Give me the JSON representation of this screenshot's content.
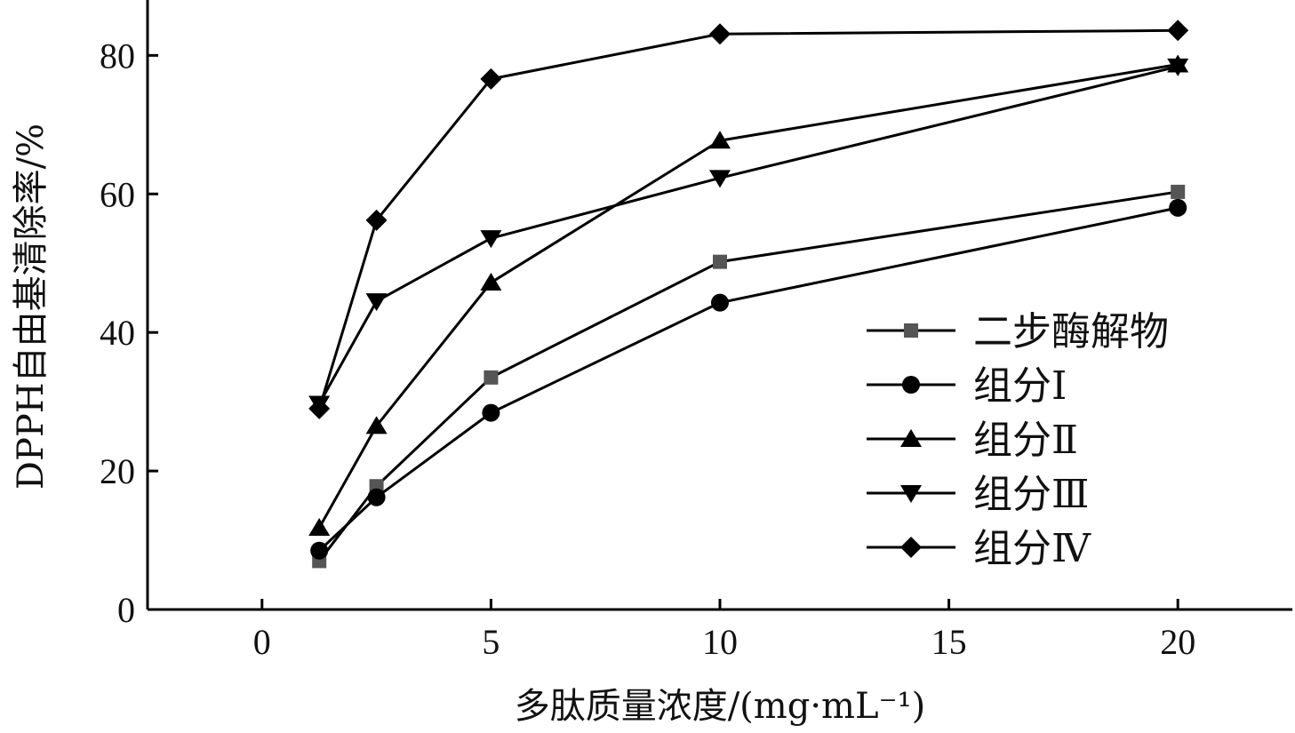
{
  "chart_data": {
    "type": "line",
    "xlabel": "多肽质量浓度/(mg·mL⁻¹)",
    "ylabel": "DPPH自由基清除率/%",
    "xlim": [
      -2.5,
      22.5
    ],
    "ylim": [
      0,
      88
    ],
    "xticks": [
      0,
      5,
      10,
      15,
      20
    ],
    "yticks": [
      0,
      20,
      40,
      60,
      80
    ],
    "x": [
      1.25,
      2.5,
      5,
      10,
      20
    ],
    "legend_position": "right",
    "series": [
      {
        "name": "二步酶解物",
        "marker": "square",
        "color": "#555555",
        "values": [
          7.0,
          17.8,
          33.5,
          50.2,
          60.3
        ]
      },
      {
        "name": "组分Ⅰ",
        "marker": "circle",
        "color": "#000000",
        "values": [
          8.5,
          16.2,
          28.4,
          44.3,
          58.0
        ]
      },
      {
        "name": "组分Ⅱ",
        "marker": "triangle-up",
        "color": "#000000",
        "values": [
          11.8,
          26.5,
          47.2,
          67.7,
          78.7
        ]
      },
      {
        "name": "组分Ⅲ",
        "marker": "triangle-down",
        "color": "#000000",
        "values": [
          29.7,
          44.5,
          53.6,
          62.3,
          78.4
        ]
      },
      {
        "name": "组分Ⅳ",
        "marker": "diamond",
        "color": "#000000",
        "values": [
          29.0,
          56.2,
          76.6,
          83.1,
          83.6
        ]
      }
    ]
  }
}
